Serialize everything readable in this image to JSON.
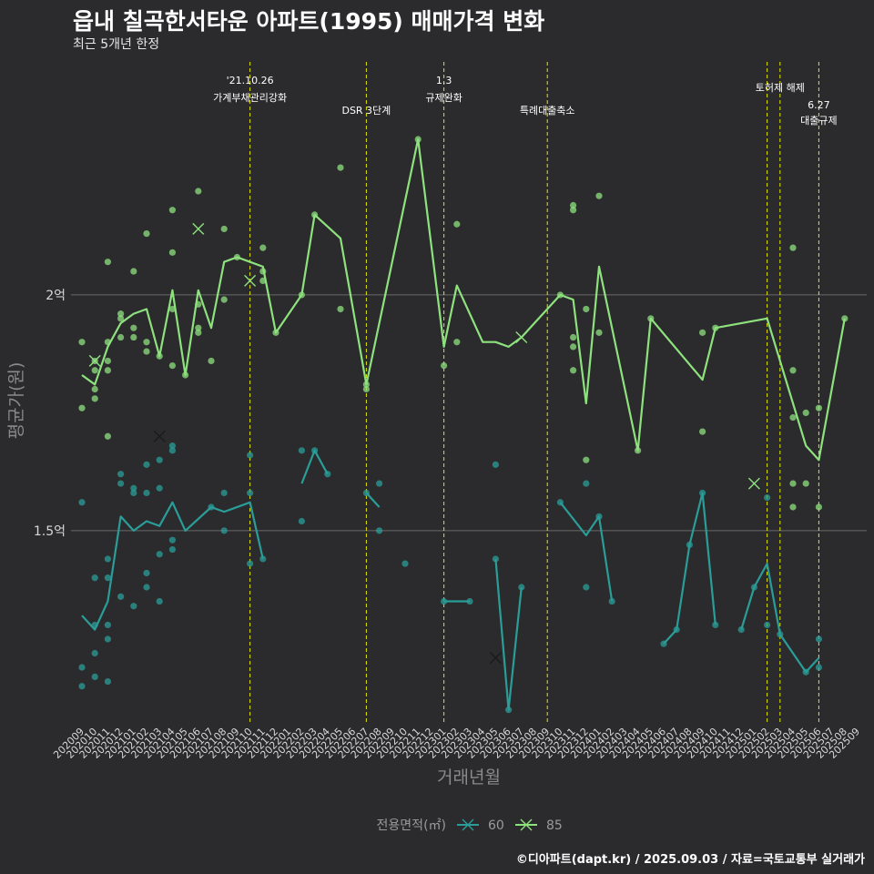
{
  "title": "읍내 칠곡한서타운 아파트(1995) 매매가격 변화",
  "subtitle": "최근 5개년 한정",
  "caption": "©디아파트(dapt.kr) / 2025.09.03 / 자료=국토교통부 실거래가",
  "colors": {
    "background": "#2b2b2d",
    "grid": "#6a6a6a",
    "event_line": "#e5e500",
    "series_60": "#2a9d98",
    "series_85": "#8ee27e"
  },
  "chart_data": {
    "type": "line",
    "xlabel": "거래년월",
    "ylabel": "평균가(원)",
    "ylim": [
      1.1,
      2.5
    ],
    "y_ticks": [
      {
        "value": 1.5,
        "label": "1.5억"
      },
      {
        "value": 2.0,
        "label": "2억"
      }
    ],
    "x_ticks": [
      "202009",
      "202010",
      "202011",
      "202012",
      "202101",
      "202102",
      "202103",
      "202104",
      "202105",
      "202106",
      "202107",
      "202108",
      "202109",
      "202110",
      "202111",
      "202112",
      "202201",
      "202202",
      "202203",
      "202204",
      "202205",
      "202206",
      "202207",
      "202208",
      "202209",
      "202210",
      "202211",
      "202212",
      "202301",
      "202302",
      "202303",
      "202304",
      "202305",
      "202306",
      "202307",
      "202308",
      "202309",
      "202310",
      "202311",
      "202312",
      "202401",
      "202402",
      "202403",
      "202404",
      "202405",
      "202406",
      "202407",
      "202408",
      "202409",
      "202410",
      "202411",
      "202412",
      "202501",
      "202502",
      "202503",
      "202504",
      "202505",
      "202506",
      "202507",
      "202508",
      "202509"
    ],
    "events": [
      {
        "x": 13,
        "label": "'21.10.26 가계부채관리강화"
      },
      {
        "x": 22,
        "label": "DSR 3단계"
      },
      {
        "x": 28,
        "label": "1.3 규제완화"
      },
      {
        "x": 36,
        "label": "특례대출축소"
      },
      {
        "x": 53,
        "label": ""
      },
      {
        "x": 54,
        "label": "토허제 해제"
      },
      {
        "x": 57,
        "label": "6.27 대출규제"
      }
    ],
    "legend": {
      "title": "전용면적(㎡)",
      "position": "bottom"
    },
    "series": [
      {
        "name": "60",
        "lines": [
          [
            [
              0,
              1.32
            ],
            [
              1,
              1.29
            ],
            [
              2,
              1.35
            ],
            [
              3,
              1.53
            ],
            [
              4,
              1.5
            ],
            [
              5,
              1.52
            ],
            [
              6,
              1.51
            ],
            [
              7,
              1.56
            ],
            [
              8,
              1.5
            ],
            [
              10,
              1.55
            ],
            [
              11,
              1.54
            ],
            [
              13,
              1.56
            ],
            [
              14,
              1.44
            ]
          ],
          [
            [
              17,
              1.6
            ],
            [
              18,
              1.67
            ],
            [
              19,
              1.62
            ]
          ],
          [
            [
              22,
              1.58
            ],
            [
              23,
              1.55
            ]
          ],
          [
            [
              28,
              1.35
            ],
            [
              30,
              1.35
            ]
          ],
          [
            [
              32,
              1.44
            ],
            [
              33,
              1.12
            ],
            [
              34,
              1.38
            ]
          ],
          [
            [
              37,
              1.56
            ],
            [
              39,
              1.49
            ],
            [
              40,
              1.53
            ],
            [
              41,
              1.35
            ]
          ],
          [
            [
              45,
              1.26
            ],
            [
              46,
              1.29
            ],
            [
              47,
              1.47
            ],
            [
              48,
              1.58
            ],
            [
              49,
              1.3
            ]
          ],
          [
            [
              51,
              1.29
            ],
            [
              52,
              1.38
            ],
            [
              53,
              1.43
            ],
            [
              54,
              1.28
            ],
            [
              56,
              1.2
            ],
            [
              57,
              1.23
            ]
          ]
        ],
        "points": [
          [
            0,
            1.56
          ],
          [
            0,
            1.21
          ],
          [
            0,
            1.17
          ],
          [
            1,
            1.4
          ],
          [
            1,
            1.3
          ],
          [
            1,
            1.24
          ],
          [
            1,
            1.19
          ],
          [
            2,
            1.44
          ],
          [
            2,
            1.4
          ],
          [
            2,
            1.3
          ],
          [
            2,
            1.27
          ],
          [
            2,
            1.18
          ],
          [
            3,
            1.62
          ],
          [
            3,
            1.6
          ],
          [
            3,
            1.36
          ],
          [
            4,
            1.59
          ],
          [
            4,
            1.58
          ],
          [
            4,
            1.34
          ],
          [
            5,
            1.64
          ],
          [
            5,
            1.58
          ],
          [
            5,
            1.41
          ],
          [
            5,
            1.38
          ],
          [
            6,
            1.65
          ],
          [
            6,
            1.59
          ],
          [
            6,
            1.45
          ],
          [
            6,
            1.35
          ],
          [
            7,
            1.68
          ],
          [
            7,
            1.67
          ],
          [
            7,
            1.48
          ],
          [
            7,
            1.46
          ],
          [
            10,
            1.55
          ],
          [
            11,
            1.58
          ],
          [
            11,
            1.5
          ],
          [
            13,
            1.66
          ],
          [
            13,
            1.58
          ],
          [
            13,
            1.43
          ],
          [
            14,
            1.44
          ],
          [
            17,
            1.67
          ],
          [
            17,
            1.52
          ],
          [
            18,
            1.67
          ],
          [
            19,
            1.62
          ],
          [
            22,
            1.58
          ],
          [
            23,
            1.6
          ],
          [
            23,
            1.5
          ],
          [
            25,
            1.43
          ],
          [
            28,
            1.35
          ],
          [
            30,
            1.35
          ],
          [
            32,
            1.64
          ],
          [
            32,
            1.44
          ],
          [
            33,
            1.12
          ],
          [
            34,
            1.38
          ],
          [
            37,
            1.56
          ],
          [
            39,
            1.6
          ],
          [
            39,
            1.38
          ],
          [
            40,
            1.53
          ],
          [
            41,
            1.35
          ],
          [
            45,
            1.26
          ],
          [
            46,
            1.29
          ],
          [
            47,
            1.47
          ],
          [
            48,
            1.58
          ],
          [
            49,
            1.3
          ],
          [
            51,
            1.29
          ],
          [
            52,
            1.38
          ],
          [
            53,
            1.57
          ],
          [
            53,
            1.3
          ],
          [
            54,
            1.28
          ],
          [
            56,
            1.2
          ],
          [
            57,
            1.27
          ],
          [
            57,
            1.21
          ]
        ],
        "x_marks": [
          [
            6,
            1.7
          ],
          [
            32,
            1.23
          ]
        ]
      },
      {
        "name": "85",
        "lines": [
          [
            [
              0,
              1.83
            ],
            [
              1,
              1.81
            ],
            [
              2,
              1.89
            ],
            [
              3,
              1.94
            ],
            [
              4,
              1.96
            ],
            [
              5,
              1.97
            ],
            [
              6,
              1.87
            ],
            [
              7,
              2.01
            ],
            [
              8,
              1.83
            ],
            [
              9,
              2.01
            ],
            [
              10,
              1.93
            ],
            [
              11,
              2.07
            ],
            [
              12,
              2.08
            ],
            [
              13,
              2.07
            ],
            [
              14,
              2.06
            ],
            [
              15,
              1.92
            ],
            [
              17,
              2.0
            ],
            [
              18,
              2.17
            ],
            [
              20,
              2.12
            ],
            [
              22,
              1.81
            ],
            [
              26,
              2.33
            ],
            [
              28,
              1.89
            ],
            [
              29,
              2.02
            ],
            [
              31,
              1.9
            ],
            [
              32,
              1.9
            ],
            [
              33,
              1.89
            ],
            [
              34,
              1.91
            ],
            [
              37,
              2.0
            ],
            [
              38,
              1.99
            ],
            [
              39,
              1.77
            ],
            [
              40,
              2.06
            ],
            [
              43,
              1.67
            ],
            [
              44,
              1.95
            ],
            [
              48,
              1.82
            ],
            [
              49,
              1.93
            ],
            [
              53,
              1.95
            ],
            [
              56,
              1.68
            ],
            [
              57,
              1.65
            ],
            [
              59,
              1.95
            ]
          ]
        ],
        "points": [
          [
            0,
            1.9
          ],
          [
            0,
            1.76
          ],
          [
            1,
            1.86
          ],
          [
            1,
            1.84
          ],
          [
            1,
            1.8
          ],
          [
            1,
            1.78
          ],
          [
            2,
            2.07
          ],
          [
            2,
            1.9
          ],
          [
            2,
            1.86
          ],
          [
            2,
            1.84
          ],
          [
            2,
            1.7
          ],
          [
            3,
            1.96
          ],
          [
            3,
            1.95
          ],
          [
            3,
            1.91
          ],
          [
            4,
            2.05
          ],
          [
            4,
            1.93
          ],
          [
            4,
            1.91
          ],
          [
            5,
            2.13
          ],
          [
            5,
            1.9
          ],
          [
            5,
            1.88
          ],
          [
            6,
            1.87
          ],
          [
            7,
            2.18
          ],
          [
            7,
            2.09
          ],
          [
            7,
            1.97
          ],
          [
            7,
            1.85
          ],
          [
            8,
            1.83
          ],
          [
            9,
            2.22
          ],
          [
            9,
            1.98
          ],
          [
            9,
            1.93
          ],
          [
            9,
            1.92
          ],
          [
            10,
            1.86
          ],
          [
            11,
            2.14
          ],
          [
            11,
            1.99
          ],
          [
            12,
            2.08
          ],
          [
            14,
            2.1
          ],
          [
            14,
            2.05
          ],
          [
            14,
            2.03
          ],
          [
            15,
            1.92
          ],
          [
            17,
            2.0
          ],
          [
            18,
            2.17
          ],
          [
            20,
            2.27
          ],
          [
            20,
            1.97
          ],
          [
            22,
            1.81
          ],
          [
            22,
            1.8
          ],
          [
            26,
            2.33
          ],
          [
            28,
            1.85
          ],
          [
            29,
            2.15
          ],
          [
            29,
            1.9
          ],
          [
            37,
            2.0
          ],
          [
            38,
            2.19
          ],
          [
            38,
            2.18
          ],
          [
            38,
            1.91
          ],
          [
            38,
            1.89
          ],
          [
            38,
            1.84
          ],
          [
            39,
            1.97
          ],
          [
            39,
            1.65
          ],
          [
            40,
            2.21
          ],
          [
            40,
            1.92
          ],
          [
            43,
            1.67
          ],
          [
            44,
            1.95
          ],
          [
            48,
            1.92
          ],
          [
            48,
            1.71
          ],
          [
            49,
            1.93
          ],
          [
            55,
            2.1
          ],
          [
            55,
            1.84
          ],
          [
            55,
            1.74
          ],
          [
            55,
            1.6
          ],
          [
            55,
            1.55
          ],
          [
            56,
            1.75
          ],
          [
            56,
            1.6
          ],
          [
            57,
            1.76
          ],
          [
            57,
            1.55
          ],
          [
            59,
            1.95
          ]
        ],
        "x_marks": [
          [
            1,
            1.86
          ],
          [
            9,
            2.14
          ],
          [
            13,
            2.03
          ],
          [
            34,
            1.91
          ],
          [
            52,
            1.6
          ]
        ]
      }
    ]
  }
}
